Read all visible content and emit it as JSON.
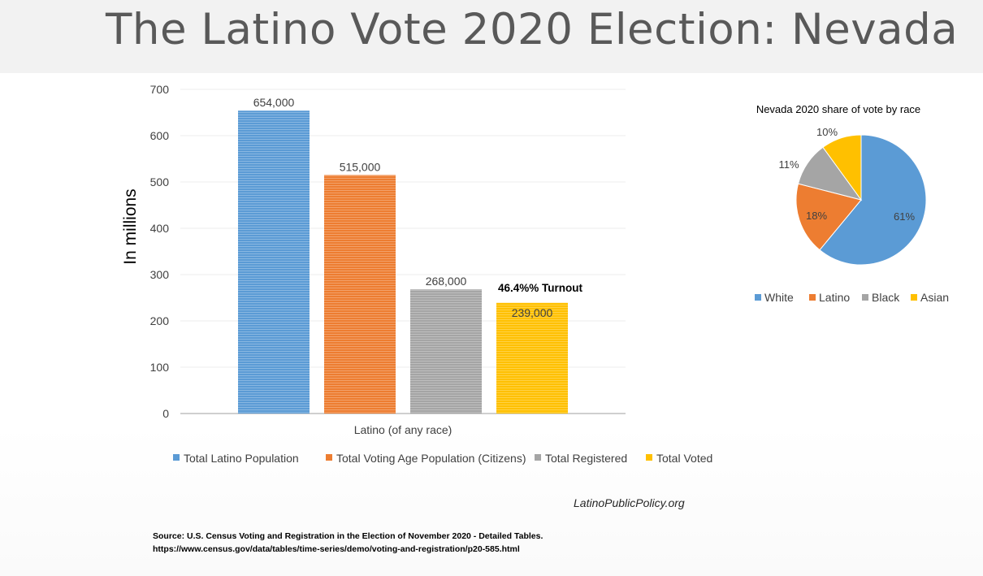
{
  "slide": {
    "title": "The Latino Vote 2020 Election: Nevada",
    "credit": "LatinoPublicPolicy.org",
    "source_line1": "Source: U.S. Census  Voting and Registration in the Election of November 2020 - Detailed Tables.",
    "source_line2": "https://www.census.gov/data/tables/time-series/demo/voting-and-registration/p20-585.html"
  },
  "chart_data": [
    {
      "type": "bar",
      "title": "",
      "xlabel": "",
      "ylabel": "In millions",
      "ylim": [
        0,
        700
      ],
      "yticks": [
        0,
        100,
        200,
        300,
        400,
        500,
        600,
        700
      ],
      "grid": true,
      "legend_position": "bottom",
      "categories": [
        "Latino (of any race)"
      ],
      "series": [
        {
          "name": "Total Latino Population",
          "values": [
            654
          ],
          "label": "654,000",
          "color": "#5b9bd5"
        },
        {
          "name": "Total Voting Age Population (Citizens)",
          "values": [
            515
          ],
          "label": "515,000",
          "color": "#ed7d31"
        },
        {
          "name": "Total Registered",
          "values": [
            268
          ],
          "label": "268,000",
          "color": "#a5a5a5"
        },
        {
          "name": "Total Voted",
          "values": [
            239
          ],
          "label": "239,000",
          "color": "#ffc000"
        }
      ],
      "annotations": [
        {
          "text": "46.4%% Turnout",
          "series": "Total Voted"
        }
      ]
    },
    {
      "type": "pie",
      "title": "Nevada 2020 share of vote by race",
      "legend_position": "bottom",
      "slices": [
        {
          "name": "White",
          "value": 61,
          "label": "61%",
          "color": "#5b9bd5"
        },
        {
          "name": "Latino",
          "value": 18,
          "label": "18%",
          "color": "#ed7d31"
        },
        {
          "name": "Black",
          "value": 11,
          "label": "11%",
          "color": "#a5a5a5"
        },
        {
          "name": "Asian",
          "value": 10,
          "label": "10%",
          "color": "#ffc000"
        }
      ]
    }
  ]
}
